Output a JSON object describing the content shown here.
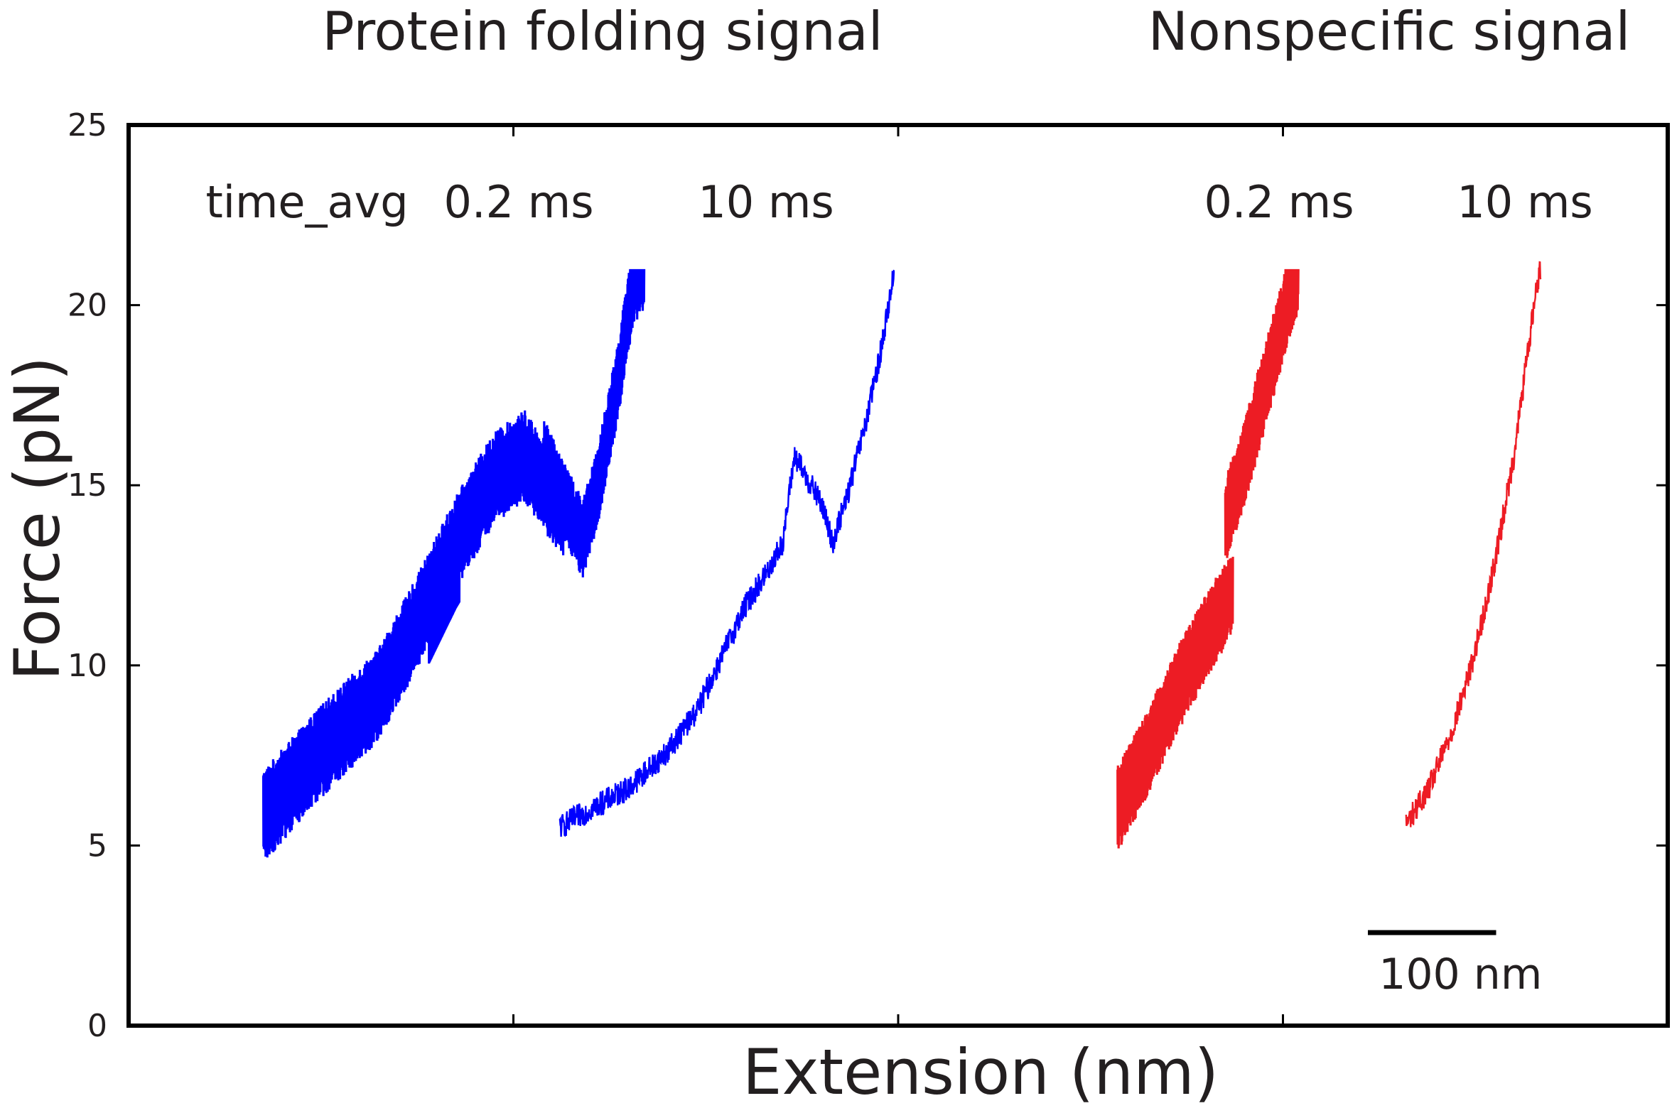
{
  "chart_data": {
    "type": "line",
    "panel_titles": {
      "left": "Protein folding signal",
      "right": "Nonspecific signal"
    },
    "xlabel": "Extension (nm)",
    "ylabel": "Force (pN)",
    "ylim": [
      0,
      25
    ],
    "yticks": [
      "0",
      "5",
      "10",
      "15",
      "20",
      "25"
    ],
    "xlim": [
      0,
      400
    ],
    "x_tick_values": [
      100,
      200,
      300
    ],
    "scale_bar": {
      "length_nm": 100,
      "label": "100 nm"
    },
    "colors": {
      "folding": "#0000ff",
      "nonspecific": "#ed1c24",
      "axis": "#000000",
      "text": "#231f20"
    },
    "series": [
      {
        "name": "time_avg",
        "label": "time_avg",
        "color": "#0000ff",
        "kind": "band",
        "points": [
          [
            35,
            5.8
          ],
          [
            50,
            7.6
          ],
          [
            65,
            9.2
          ],
          [
            75,
            11.2
          ],
          [
            85,
            13.4
          ],
          [
            95,
            15.2
          ],
          [
            103,
            15.8
          ],
          [
            108,
            15.0
          ],
          [
            113,
            14.3
          ]
        ],
        "noise_pN": 2.6,
        "event": {
          "from_x": 78,
          "to_x": 86,
          "min_force": 3.0,
          "label_force": 16.8
        }
      },
      {
        "name": "0.2 ms (protein folding)",
        "label": "0.2 ms",
        "color": "#0000ff",
        "kind": "band",
        "segments": [
          [
            [
              108,
              15.8
            ],
            [
              113,
              14.6
            ],
            [
              118,
              13.5
            ]
          ],
          [
            [
              118,
              13.5
            ],
            [
              122,
              15.0
            ],
            [
              127,
              17.8
            ],
            [
              131,
              20.5
            ],
            [
              134,
              21.0
            ]
          ]
        ],
        "noise_pN": 2.2,
        "clip_max": 21.0
      },
      {
        "name": "10 ms (protein folding)",
        "label": "10 ms",
        "color": "#0000ff",
        "kind": "line",
        "points": [
          [
            112,
            5.5
          ],
          [
            120,
            6.0
          ],
          [
            130,
            6.6
          ],
          [
            140,
            7.6
          ],
          [
            148,
            8.8
          ],
          [
            154,
            10.2
          ],
          [
            160,
            11.6
          ],
          [
            166,
            12.6
          ],
          [
            170,
            13.4
          ],
          [
            173,
            15.8
          ],
          [
            180,
            14.5
          ],
          [
            183,
            13.4
          ],
          [
            187,
            14.8
          ],
          [
            192,
            16.9
          ],
          [
            196,
            19.0
          ],
          [
            199,
            21.0
          ]
        ],
        "noise_pN": 0.35
      },
      {
        "name": "0.2 ms (nonspecific)",
        "label": "0.2 ms",
        "color": "#ed1c24",
        "kind": "band",
        "segments": [
          [
            [
              257,
              6.0
            ],
            [
              265,
              7.6
            ],
            [
              272,
              9.2
            ],
            [
              280,
              10.8
            ],
            [
              287,
              12.0
            ]
          ],
          [
            [
              285,
              14.0
            ],
            [
              290,
              15.6
            ],
            [
              295,
              17.6
            ],
            [
              300,
              19.6
            ],
            [
              304,
              21.0
            ]
          ]
        ],
        "noise_pN": 2.4,
        "clip_max": 21.0
      },
      {
        "name": "10 ms (nonspecific)",
        "label": "10 ms",
        "color": "#ed1c24",
        "kind": "line",
        "points": [
          [
            332,
            5.6
          ],
          [
            338,
            6.6
          ],
          [
            344,
            8.2
          ],
          [
            349,
            10.0
          ],
          [
            353,
            11.8
          ],
          [
            356,
            13.4
          ],
          [
            360,
            15.8
          ],
          [
            363,
            18.2
          ],
          [
            366,
            20.6
          ],
          [
            367,
            21.0
          ]
        ],
        "noise_pN": 0.35
      }
    ]
  }
}
